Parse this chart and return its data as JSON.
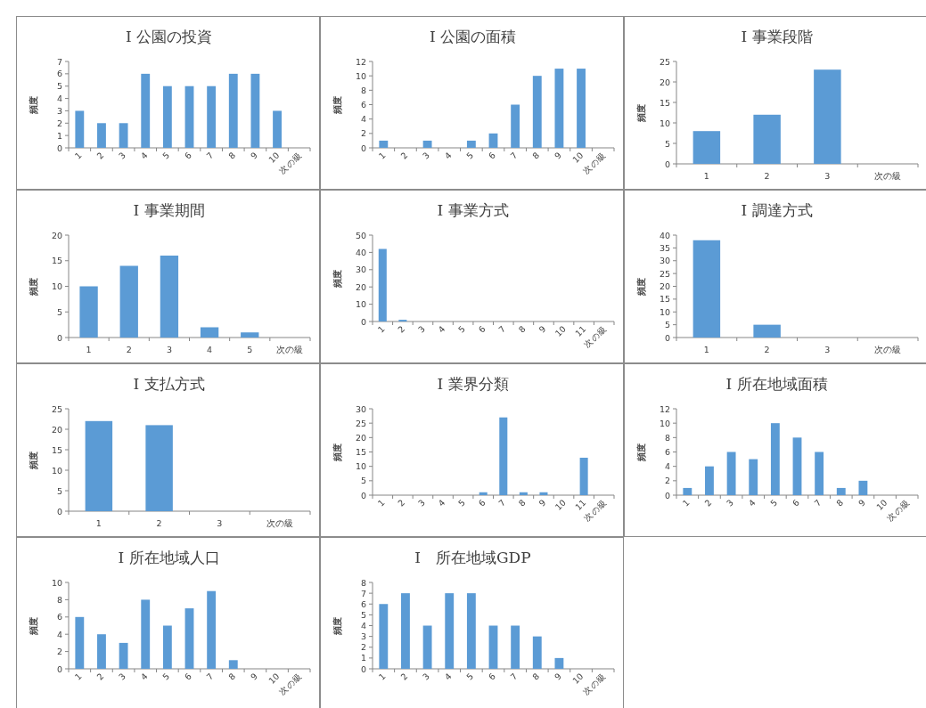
{
  "chart_data": [
    {
      "type": "bar",
      "title": "I 公園の投資",
      "ylabel": "頻度",
      "categories": [
        "1",
        "2",
        "3",
        "4",
        "5",
        "6",
        "7",
        "8",
        "9",
        "10",
        "次の級"
      ],
      "values": [
        3,
        2,
        2,
        6,
        5,
        5,
        5,
        6,
        6,
        3,
        0
      ],
      "color": "#5b9bd5",
      "ylim": [
        0,
        7
      ],
      "yticks": [
        0,
        1,
        2,
        3,
        4,
        5,
        6,
        7
      ]
    },
    {
      "type": "bar",
      "title": "I 公園の面積",
      "ylabel": "頻度",
      "categories": [
        "1",
        "2",
        "3",
        "4",
        "5",
        "6",
        "7",
        "8",
        "9",
        "10",
        "次の級"
      ],
      "values": [
        1,
        0,
        1,
        0,
        1,
        2,
        6,
        10,
        11,
        11,
        0
      ],
      "color": "#5b9bd5",
      "ylim": [
        0,
        12
      ],
      "yticks": [
        0,
        2,
        4,
        6,
        8,
        10,
        12
      ]
    },
    {
      "type": "bar",
      "title": "I 事業段階",
      "ylabel": "頻度",
      "categories": [
        "1",
        "2",
        "3",
        "次の級"
      ],
      "values": [
        8,
        12,
        23,
        0
      ],
      "color": "#5b9bd5",
      "ylim": [
        0,
        25
      ],
      "yticks": [
        0,
        5,
        10,
        15,
        20,
        25
      ]
    },
    {
      "type": "bar",
      "title": "I 事業期間",
      "ylabel": "頻度",
      "categories": [
        "1",
        "2",
        "3",
        "4",
        "5",
        "次の級"
      ],
      "values": [
        10,
        14,
        16,
        2,
        1,
        0
      ],
      "color": "#5b9bd5",
      "ylim": [
        0,
        20
      ],
      "yticks": [
        0,
        5,
        10,
        15,
        20
      ]
    },
    {
      "type": "bar",
      "title": "I 事業方式",
      "ylabel": "頻度",
      "categories": [
        "1",
        "2",
        "3",
        "4",
        "5",
        "6",
        "7",
        "8",
        "9",
        "10",
        "11",
        "次の級"
      ],
      "values": [
        42,
        1,
        0,
        0,
        0,
        0,
        0,
        0,
        0,
        0,
        0,
        0
      ],
      "color": "#5b9bd5",
      "ylim": [
        0,
        50
      ],
      "yticks": [
        0,
        10,
        20,
        30,
        40,
        50
      ]
    },
    {
      "type": "bar",
      "title": "I 調達方式",
      "ylabel": "頻度",
      "categories": [
        "1",
        "2",
        "3",
        "次の級"
      ],
      "values": [
        38,
        5,
        0,
        0
      ],
      "color": "#5b9bd5",
      "ylim": [
        0,
        40
      ],
      "yticks": [
        0,
        5,
        10,
        15,
        20,
        25,
        30,
        35,
        40
      ]
    },
    {
      "type": "bar",
      "title": "I 支払方式",
      "ylabel": "頻度",
      "categories": [
        "1",
        "2",
        "3",
        "次の級"
      ],
      "values": [
        22,
        21,
        0,
        0
      ],
      "color": "#5b9bd5",
      "ylim": [
        0,
        25
      ],
      "yticks": [
        0,
        5,
        10,
        15,
        20,
        25
      ]
    },
    {
      "type": "bar",
      "title": "I 業界分類",
      "ylabel": "頻度",
      "categories": [
        "1",
        "2",
        "3",
        "4",
        "5",
        "6",
        "7",
        "8",
        "9",
        "10",
        "11",
        "次の級"
      ],
      "values": [
        0,
        0,
        0,
        0,
        0,
        1,
        27,
        1,
        1,
        0,
        13,
        0
      ],
      "color": "#5b9bd5",
      "ylim": [
        0,
        30
      ],
      "yticks": [
        0,
        5,
        10,
        15,
        20,
        25,
        30
      ]
    },
    {
      "type": "bar",
      "title": "I 所在地域面積",
      "ylabel": "頻度",
      "categories": [
        "1",
        "2",
        "3",
        "4",
        "5",
        "6",
        "7",
        "8",
        "9",
        "10",
        "次の級"
      ],
      "values": [
        1,
        4,
        6,
        5,
        10,
        8,
        6,
        1,
        2,
        0,
        0
      ],
      "color": "#5b9bd5",
      "ylim": [
        0,
        12
      ],
      "yticks": [
        0,
        2,
        4,
        6,
        8,
        10,
        12
      ]
    },
    {
      "type": "bar",
      "title": "I 所在地域人口",
      "ylabel": "頻度",
      "categories": [
        "1",
        "2",
        "3",
        "4",
        "5",
        "6",
        "7",
        "8",
        "9",
        "10",
        "次の級"
      ],
      "values": [
        6,
        4,
        3,
        8,
        5,
        7,
        9,
        1,
        0,
        0,
        0
      ],
      "color": "#5b9bd5",
      "ylim": [
        0,
        10
      ],
      "yticks": [
        0,
        2,
        4,
        6,
        8,
        10
      ]
    },
    {
      "type": "bar",
      "title": "I　所在地域GDP",
      "ylabel": "頻度",
      "categories": [
        "1",
        "2",
        "3",
        "4",
        "5",
        "6",
        "7",
        "8",
        "9",
        "10",
        "次の級"
      ],
      "values": [
        6,
        7,
        4,
        7,
        7,
        4,
        4,
        3,
        1,
        0,
        0
      ],
      "color": "#5b9bd5",
      "ylim": [
        0,
        8
      ],
      "yticks": [
        0,
        1,
        2,
        3,
        4,
        5,
        6,
        7,
        8
      ]
    }
  ]
}
